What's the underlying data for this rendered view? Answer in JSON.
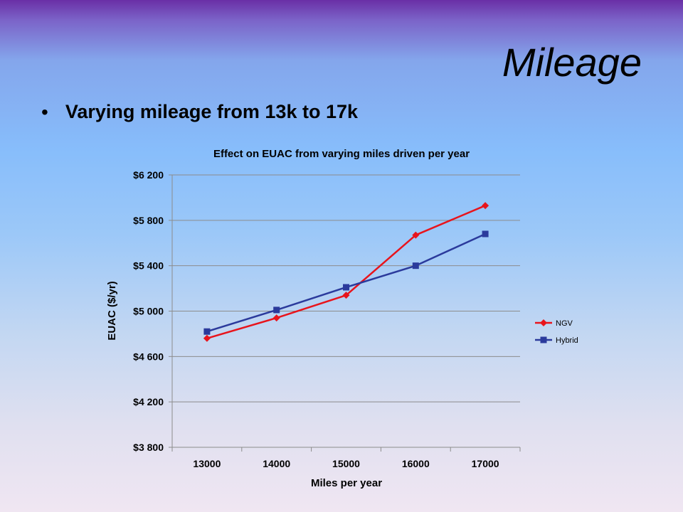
{
  "slide": {
    "title": "Mileage",
    "bullet": "Varying mileage from 13k to 17k"
  },
  "chart_data": {
    "type": "line",
    "title": "Effect on EUAC from varying miles driven per year",
    "xlabel": "Miles per year",
    "ylabel": "EUAC ($/yr)",
    "categories": [
      "13000",
      "14000",
      "15000",
      "16000",
      "17000"
    ],
    "ylim": [
      3800,
      6200
    ],
    "yticks": [
      3800,
      4200,
      4600,
      5000,
      5400,
      5800,
      6200
    ],
    "ytick_labels": [
      "$3 800",
      "$4 200",
      "$4 600",
      "$5 000",
      "$5 400",
      "$5 800",
      "$6 200"
    ],
    "grid": "horizontal",
    "legend_position": "right",
    "series": [
      {
        "name": "NGV",
        "color": "#e8141c",
        "marker": "diamond",
        "values": [
          4760,
          4940,
          5140,
          5670,
          5930
        ]
      },
      {
        "name": "Hybrid",
        "color": "#2b3a9c",
        "marker": "square",
        "values": [
          4820,
          5010,
          5210,
          5400,
          5680
        ]
      }
    ]
  }
}
